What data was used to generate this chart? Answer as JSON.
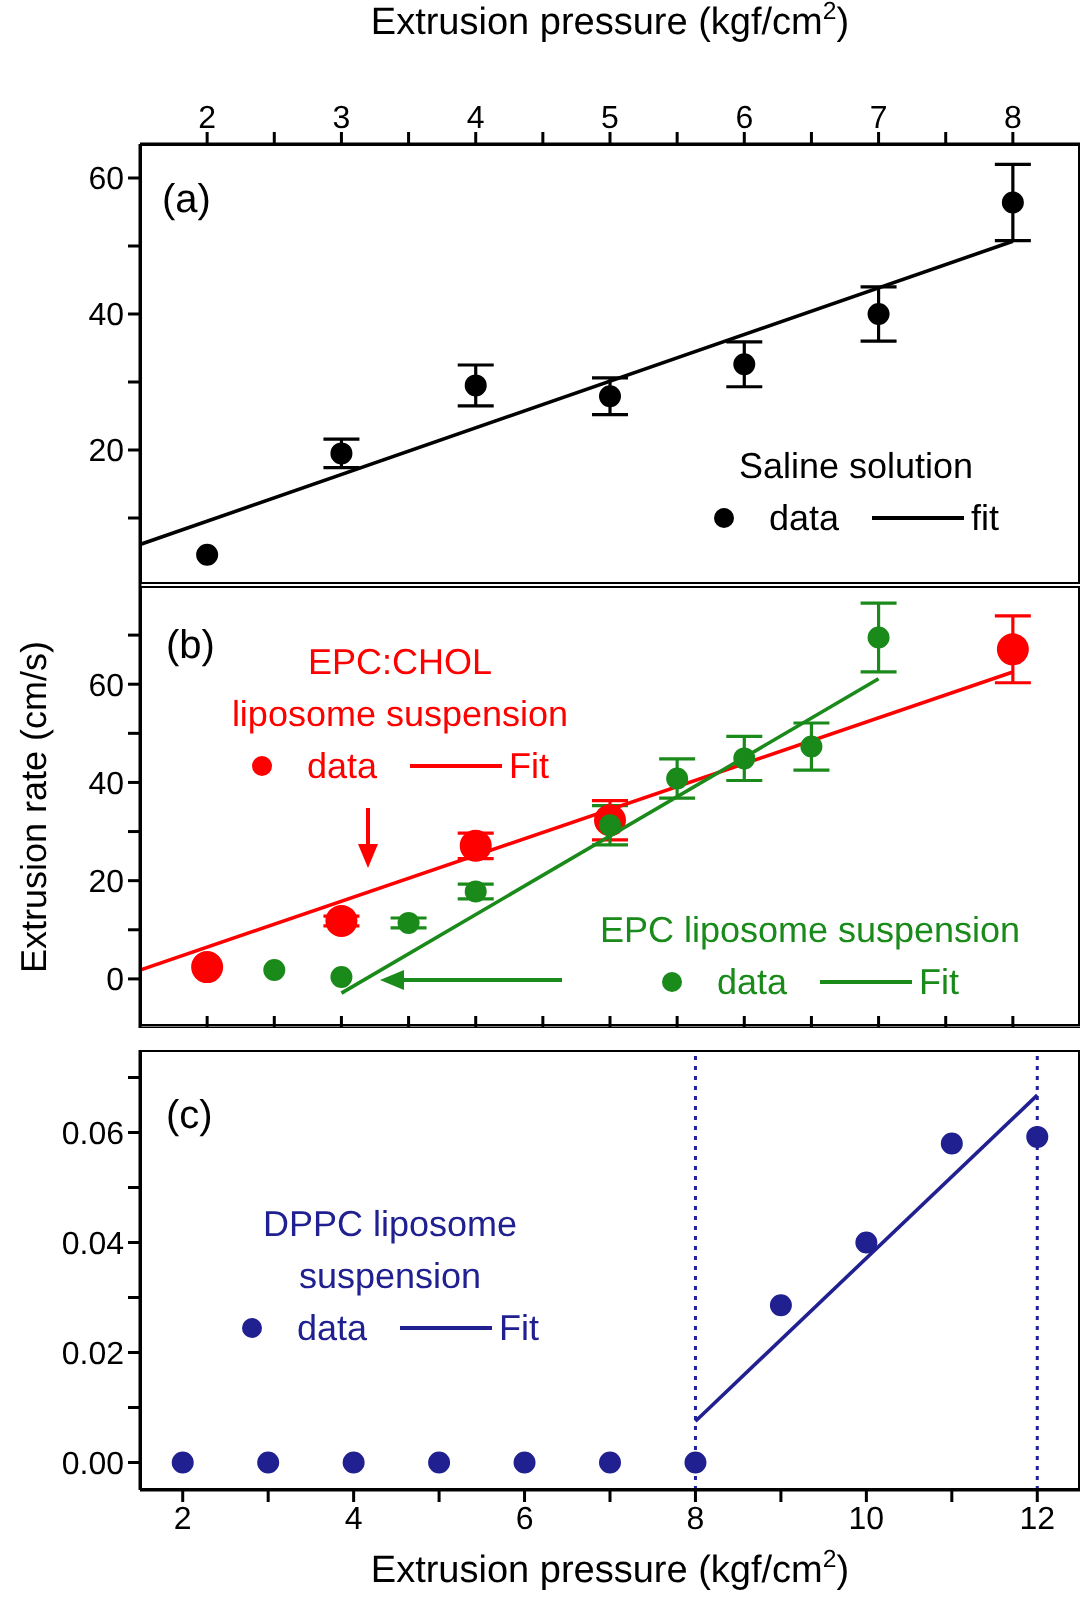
{
  "chart_data": [
    {
      "type": "scatter",
      "annotations": [
        "(a)",
        "Saline solution"
      ],
      "xlabel": "Extrusion pressure (kgf/cm$^{2}$)",
      "xlim": [
        1.5,
        8.5
      ],
      "xticks": [
        2,
        {
          "value": 2.5,
          "label": null
        },
        3,
        {
          "value": 3.5,
          "label": null
        },
        4,
        {
          "value": 4.5,
          "label": null
        },
        5,
        {
          "value": 5.5,
          "label": null
        },
        6,
        {
          "value": 6.5,
          "label": null
        },
        7,
        {
          "value": 7.5,
          "label": null
        },
        8
      ],
      "ylim": [
        0,
        65
      ],
      "yticks": [
        {
          "value": 10,
          "label": null
        },
        20,
        {
          "value": 30,
          "label": null
        },
        40,
        {
          "value": 50,
          "label": null
        },
        60
      ],
      "legend": "bottom right",
      "series": [
        {
          "name": "data",
          "type": "scatter",
          "marker": "circle",
          "color": "#000000",
          "x": [
            2,
            3,
            4,
            5,
            6,
            7,
            8
          ],
          "values": [
            4.6,
            19.5,
            29.5,
            27.9,
            32.6,
            40,
            56.4
          ],
          "errors": [
            null,
            2.1,
            3,
            2.7,
            3.3,
            4,
            5.6
          ]
        },
        {
          "name": "fit",
          "type": "line",
          "marker": "none",
          "color": "#000000",
          "x": [
            1.5,
            8
          ],
          "values": [
            6.1,
            50.7
          ]
        }
      ]
    },
    {
      "type": "scatter",
      "annotations": [
        "(b)",
        "EPC:CHOL liposome suspension",
        "EPC liposome suspension"
      ],
      "ylabel": "Extrusion rate (cm/s)",
      "xlim": [
        1.5,
        8.5
      ],
      "xticks": [
        2,
        2.5,
        3,
        3.5,
        4,
        4.5,
        5,
        5.5,
        6,
        6.5,
        7,
        7.5,
        8
      ],
      "tick_labels": "y",
      "ylim": [
        -10,
        80
      ],
      "yticks": [
        0,
        {
          "value": 10,
          "label": null
        },
        20,
        {
          "value": 30,
          "label": null
        },
        40,
        {
          "value": 50,
          "label": null
        },
        60,
        {
          "value": 70,
          "label": null
        }
      ],
      "legend": "bottom left",
      "series": [
        {
          "name": "data",
          "type": "scatter",
          "marker": "circle",
          "color": "#ff0000",
          "x": [
            2,
            3,
            4,
            5,
            8
          ],
          "values": [
            2.4,
            11.8,
            27.1,
            32.3,
            67.1
          ],
          "errors": [
            null,
            1,
            2.6,
            4,
            6.8
          ]
        },
        {
          "name": "Fit",
          "type": "line",
          "marker": "none",
          "color": "#ff0000",
          "x": [
            1.5,
            8
          ],
          "values": [
            1.8,
            62.5
          ]
        },
        {
          "name": "data",
          "type": "scatter",
          "marker": "circle",
          "color": "#1a8a1a",
          "x": [
            2.5,
            3,
            3.5,
            4,
            5,
            5.5,
            6,
            6.5,
            7
          ],
          "values": [
            1.8,
            0.4,
            11.4,
            17.8,
            31.3,
            40.8,
            44.9,
            47.3,
            69.5
          ],
          "errors": [
            null,
            null,
            1,
            1.5,
            4,
            4,
            4.5,
            4.8,
            7
          ]
        },
        {
          "name": "Fit",
          "type": "line",
          "marker": "none",
          "color": "#1a8a1a",
          "x": [
            3,
            7
          ],
          "values": [
            -2.9,
            61.1
          ]
        }
      ]
    },
    {
      "type": "scatter",
      "annotations": [
        "(c)",
        "DPPC liposome suspension"
      ],
      "xlabel": "Extrusion pressure (kgf/cm$^{2}$)",
      "xlim": [
        1.5,
        12.5
      ],
      "xticks": [
        2,
        {
          "value": 3,
          "label": null
        },
        4,
        {
          "value": 5,
          "label": null
        },
        6,
        {
          "value": 7,
          "label": null
        },
        8,
        {
          "value": 9,
          "label": null
        },
        10,
        {
          "value": 11,
          "label": null
        },
        12
      ],
      "ylim": [
        -0.005,
        0.075
      ],
      "yticks": [
        {
          "value": 0,
          "label": "0.00"
        },
        {
          "value": 0.01,
          "label": null
        },
        0.02,
        {
          "value": 0.03,
          "label": null
        },
        0.04,
        {
          "value": 0.05,
          "label": null
        },
        0.06,
        {
          "value": 0.07,
          "label": null
        }
      ],
      "legend": "left",
      "ref_lines": [
        {
          "axis": "x",
          "value": 8,
          "color": "#2020a0",
          "line_style": "dotted"
        },
        {
          "axis": "x",
          "value": 12,
          "color": "#2020a0",
          "line_style": "dotted"
        }
      ],
      "series": [
        {
          "name": "data",
          "type": "scatter",
          "marker": "circle",
          "color": "#202090",
          "x": [
            2,
            3,
            4,
            5,
            6,
            7,
            8,
            9,
            10,
            11,
            12
          ],
          "values": [
            0,
            0,
            0,
            0,
            0,
            0,
            0,
            0.0286,
            0.04,
            0.058,
            0.0592
          ]
        },
        {
          "name": "Fit",
          "type": "line",
          "marker": "none",
          "color": "#202090",
          "x": [
            8,
            12
          ],
          "values": [
            0.0075,
            0.0668
          ]
        }
      ]
    }
  ]
}
